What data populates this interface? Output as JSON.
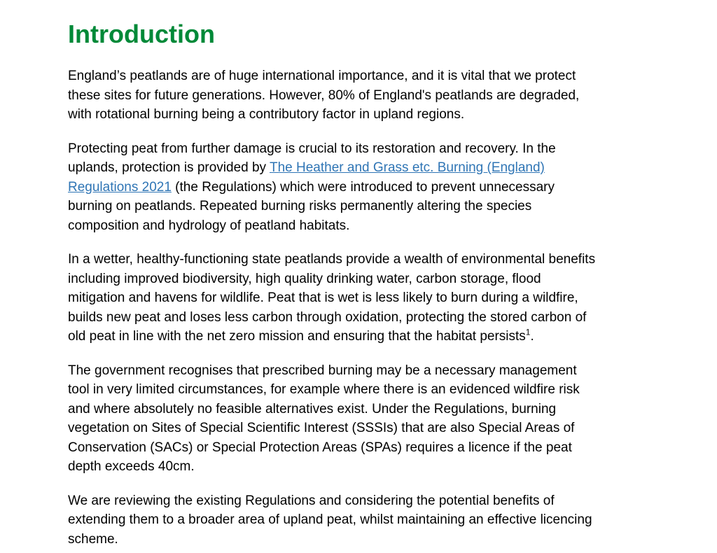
{
  "heading": "Introduction",
  "colors": {
    "heading": "#008938",
    "link": "#2f75b5"
  },
  "p1": [
    "England’s peatlands are of huge international importance, and it is vital that we protect",
    "these sites for future generations. However, 80% of England's peatlands are degraded,",
    "with rotational burning being a contributory factor in upland regions."
  ],
  "p2": {
    "l1": "Protecting peat from further damage is crucial to its restoration and recovery. In the",
    "l2_pre": "uplands, protection is provided by ",
    "link_part1": "The Heather and Grass etc. Burning (England)",
    "link_part2": "Regulations 2021",
    "l3_post": " (the Regulations) which were introduced to prevent unnecessary",
    "l4": "burning on peatlands. Repeated burning risks permanently altering the species",
    "l5": "composition and hydrology of peatland habitats."
  },
  "p3": {
    "lines": [
      "In a wetter, healthy-functioning state peatlands provide a wealth of environmental benefits",
      "including improved biodiversity, high quality drinking water, carbon storage, flood",
      "mitigation and havens for wildlife. Peat that is wet is less likely to burn during a wildfire,",
      "builds new peat and loses less carbon through oxidation, protecting the stored carbon of"
    ],
    "last": "old peat in line with the net zero mission and ensuring that the habitat persists",
    "footnote": "1",
    "end": "."
  },
  "p4": [
    "The government recognises that prescribed burning may be a necessary management",
    "tool in very limited circumstances, for example where there is an evidenced wildfire risk",
    "and where absolutely no feasible alternatives exist. Under the Regulations, burning",
    "vegetation on Sites of Special Scientific Interest (SSSIs) that are also Special Areas of",
    "Conservation (SACs) or Special Protection Areas (SPAs) requires a licence if the peat",
    "depth exceeds 40cm."
  ],
  "p5": [
    "We are reviewing the existing Regulations and considering the potential benefits of",
    "extending them to a broader area of upland peat, whilst maintaining an effective licencing",
    "scheme."
  ]
}
